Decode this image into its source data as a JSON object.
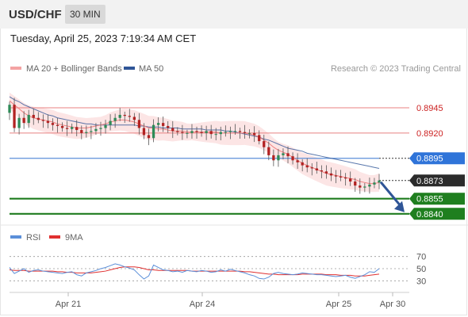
{
  "header": {
    "symbol": "USD/CHF",
    "timeframe": "30 MIN"
  },
  "datetime": "Tuesday, April 25, 2023 7:19:34 AM CET",
  "chart_data": {
    "type": "candlestick",
    "legend": [
      {
        "name": "MA 20 + Bollinger Bands",
        "color": "#f08080"
      },
      {
        "name": "MA 50",
        "color": "#2f5597"
      }
    ],
    "credit": "Research © 2023 Trading Central",
    "ylim": [
      0.8832,
      0.8967
    ],
    "x_ticks": [
      "Apr 21",
      "Apr 24",
      "Apr 25",
      "Apr 30"
    ],
    "levels": [
      {
        "value": 0.8945,
        "label": "0.8945",
        "kind": "resistance"
      },
      {
        "value": 0.892,
        "label": "0.8920",
        "kind": "resistance"
      },
      {
        "value": 0.8895,
        "label": "0.8895",
        "kind": "pivot"
      },
      {
        "value": 0.8873,
        "label": "0.8873",
        "kind": "last"
      },
      {
        "value": 0.8855,
        "label": "0.8855",
        "kind": "support"
      },
      {
        "value": 0.884,
        "label": "0.8840",
        "kind": "support"
      }
    ],
    "close": [
      0.8948,
      0.8925,
      0.8935,
      0.893,
      0.8938,
      0.8935,
      0.8933,
      0.8932,
      0.893,
      0.8928,
      0.8927,
      0.8925,
      0.8924,
      0.8926,
      0.8923,
      0.892,
      0.8921,
      0.8922,
      0.8924,
      0.8925,
      0.8928,
      0.8932,
      0.8935,
      0.8938,
      0.8937,
      0.8936,
      0.8933,
      0.8925,
      0.8918,
      0.8915,
      0.8928,
      0.893,
      0.8927,
      0.8925,
      0.8922,
      0.8921,
      0.892,
      0.892,
      0.8922,
      0.8921,
      0.892,
      0.8922,
      0.8919,
      0.8919,
      0.8921,
      0.8921,
      0.8922,
      0.8922,
      0.8921,
      0.892,
      0.892,
      0.8918,
      0.8912,
      0.8906,
      0.8898,
      0.8893,
      0.8898,
      0.89,
      0.8897,
      0.8893,
      0.8891,
      0.8888,
      0.8886,
      0.8885,
      0.8883,
      0.8882,
      0.888,
      0.8878,
      0.8877,
      0.8876,
      0.8875,
      0.8872,
      0.8868,
      0.8866,
      0.8867,
      0.8869,
      0.8871,
      0.8873
    ],
    "ma20": [
      0.8952,
      0.8948,
      0.8944,
      0.894,
      0.8937,
      0.8935,
      0.8934,
      0.8933,
      0.8932,
      0.8931,
      0.8929,
      0.8928,
      0.8927,
      0.8926,
      0.8925,
      0.8925,
      0.8925,
      0.8926,
      0.8927,
      0.8928,
      0.8929,
      0.8931,
      0.8932,
      0.8933,
      0.8933,
      0.8932,
      0.8931,
      0.8929,
      0.8927,
      0.8925,
      0.8925,
      0.8924,
      0.8924,
      0.8923,
      0.8922,
      0.8922,
      0.8922,
      0.8921,
      0.8921,
      0.8921,
      0.8921,
      0.8921,
      0.8921,
      0.8921,
      0.892,
      0.892,
      0.892,
      0.892,
      0.892,
      0.892,
      0.8919,
      0.8918,
      0.8916,
      0.8913,
      0.891,
      0.8906,
      0.8903,
      0.8901,
      0.8899,
      0.8896,
      0.8893,
      0.889,
      0.8888,
      0.8886,
      0.8884,
      0.8882,
      0.888,
      0.8879,
      0.8878,
      0.8877,
      0.8876,
      0.8875,
      0.8874,
      0.8872,
      0.8871,
      0.887,
      0.887,
      0.8871
    ],
    "ma50": [
      0.8956,
      0.8953,
      0.8951,
      0.8948,
      0.8946,
      0.8944,
      0.8942,
      0.894,
      0.8938,
      0.8937,
      0.8935,
      0.8934,
      0.8933,
      0.8932,
      0.8931,
      0.893,
      0.8929,
      0.8929,
      0.8928,
      0.8928,
      0.8928,
      0.8928,
      0.8928,
      0.8928,
      0.8928,
      0.8928,
      0.8928,
      0.8927,
      0.8927,
      0.8926,
      0.8926,
      0.8926,
      0.8925,
      0.8925,
      0.8925,
      0.8925,
      0.8924,
      0.8924,
      0.8924,
      0.8924,
      0.8924,
      0.8923,
      0.8923,
      0.8923,
      0.8923,
      0.8922,
      0.8922,
      0.8921,
      0.892,
      0.8919,
      0.8918,
      0.8917,
      0.8916,
      0.8914,
      0.8913,
      0.8911,
      0.8909,
      0.8907,
      0.8905,
      0.8904,
      0.8903,
      0.8902,
      0.89,
      0.8899,
      0.8898,
      0.8897,
      0.8896,
      0.8895,
      0.8894,
      0.8893,
      0.8892,
      0.8891,
      0.889,
      0.8889,
      0.8888,
      0.8887,
      0.8886,
      0.8885
    ],
    "forecast": {
      "from": 0.8873,
      "to": 0.884,
      "color": "#2f5597"
    },
    "rsi_panel": {
      "legend": [
        {
          "name": "RSI",
          "color": "#5b8fd9"
        },
        {
          "name": "9MA",
          "color": "#e03030"
        }
      ],
      "ylim": [
        20,
        80
      ],
      "ticks": [
        "70",
        "50",
        "30"
      ],
      "tick_values": [
        70,
        50,
        30
      ],
      "rsi": [
        52,
        42,
        46,
        50,
        44,
        47,
        48,
        46,
        45,
        44,
        43,
        42,
        44,
        45,
        40,
        38,
        43,
        45,
        47,
        50,
        52,
        55,
        58,
        56,
        53,
        51,
        48,
        40,
        33,
        38,
        56,
        52,
        48,
        47,
        45,
        46,
        44,
        47,
        46,
        45,
        47,
        46,
        44,
        45,
        48,
        46,
        49,
        47,
        45,
        43,
        40,
        38,
        34,
        33,
        36,
        42,
        44,
        42,
        41,
        40,
        41,
        43,
        42,
        41,
        40,
        40,
        39,
        38,
        37,
        38,
        39,
        36,
        34,
        37,
        40,
        45,
        44,
        50
      ],
      "ma9": [
        48,
        47,
        47,
        47,
        46,
        46,
        46,
        46,
        46,
        46,
        45,
        45,
        44,
        44,
        43,
        43,
        43,
        43,
        44,
        45,
        46,
        48,
        50,
        52,
        53,
        53,
        53,
        52,
        50,
        48,
        48,
        47,
        47,
        47,
        47,
        47,
        47,
        47,
        46,
        46,
        46,
        46,
        46,
        46,
        46,
        46,
        46,
        46,
        46,
        45,
        45,
        44,
        43,
        42,
        41,
        41,
        40,
        40,
        40,
        40,
        40,
        41,
        41,
        41,
        41,
        41,
        40,
        40,
        40,
        39,
        39,
        39,
        38,
        38,
        38,
        39,
        40,
        41
      ]
    }
  }
}
